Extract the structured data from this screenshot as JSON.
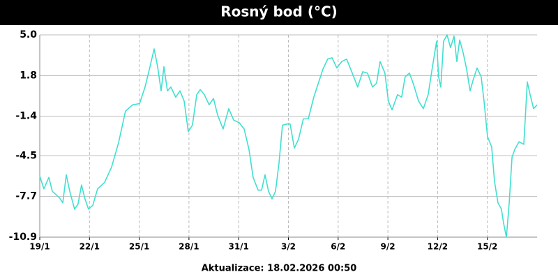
{
  "chart_data": {
    "type": "line",
    "title": "Rosný bod (°C)",
    "footer": "Aktualizace: 18.02.2026 00:50",
    "grid": true,
    "color": "#40e0d0",
    "xlim": [
      0,
      30
    ],
    "xticks": [
      {
        "value": 0,
        "label": "19/1"
      },
      {
        "value": 3,
        "label": "22/1"
      },
      {
        "value": 6,
        "label": "25/1"
      },
      {
        "value": 9,
        "label": "28/1"
      },
      {
        "value": 12,
        "label": "31/1"
      },
      {
        "value": 15,
        "label": "3/2"
      },
      {
        "value": 18,
        "label": "6/2"
      },
      {
        "value": 21,
        "label": "9/2"
      },
      {
        "value": 24,
        "label": "12/2"
      },
      {
        "value": 27,
        "label": "15/2"
      }
    ],
    "ylim": [
      -10.9,
      5
    ],
    "yticks": [
      -10.9,
      -7.7,
      -4.5,
      -1.4,
      1.8,
      {
        "value": 5,
        "label": "5.0"
      }
    ],
    "x": [
      0,
      0.25,
      0.55,
      0.76,
      1.18,
      1.39,
      1.6,
      1.81,
      2.1,
      2.31,
      2.52,
      2.73,
      2.94,
      3.2,
      3.49,
      3.91,
      4.33,
      4.75,
      5.17,
      5.6,
      6.02,
      6.35,
      6.65,
      6.9,
      7.11,
      7.32,
      7.49,
      7.7,
      7.91,
      8.2,
      8.46,
      8.71,
      8.96,
      9.21,
      9.47,
      9.68,
      9.93,
      10.22,
      10.48,
      10.73,
      11.06,
      11.4,
      11.7,
      12.03,
      12.33,
      12.62,
      12.87,
      13.17,
      13.38,
      13.59,
      13.8,
      14.01,
      14.22,
      14.43,
      14.64,
      14.93,
      15.1,
      15.36,
      15.61,
      15.9,
      16.2,
      16.53,
      16.83,
      17.08,
      17.37,
      17.63,
      17.92,
      18.22,
      18.51,
      18.85,
      19.18,
      19.48,
      19.77,
      20.07,
      20.32,
      20.53,
      20.82,
      21.03,
      21.25,
      21.58,
      21.83,
      22.04,
      22.3,
      22.55,
      22.85,
      23.14,
      23.43,
      23.69,
      23.94,
      24.06,
      24.19,
      24.36,
      24.57,
      24.78,
      24.99,
      25.16,
      25.33,
      25.54,
      25.75,
      25.96,
      26.13,
      26.38,
      26.63,
      26.8,
      27.01,
      27.26,
      27.43,
      27.64,
      27.85,
      27.98,
      28.15,
      28.32,
      28.49,
      28.66,
      28.91,
      29.2,
      29.41,
      29.58,
      29.79,
      30
    ],
    "series": [
      {
        "name": "Rosný bod",
        "color": "#40e0d0",
        "values": [
          -6.1,
          -7.1,
          -6.2,
          -7.3,
          -7.8,
          -8.2,
          -6.0,
          -7.3,
          -8.7,
          -8.3,
          -6.8,
          -7.9,
          -8.7,
          -8.4,
          -7.1,
          -6.6,
          -5.4,
          -3.5,
          -1.0,
          -0.5,
          -0.4,
          0.9,
          2.5,
          3.9,
          2.5,
          0.6,
          2.5,
          0.6,
          0.9,
          0.1,
          0.6,
          -0.2,
          -2.6,
          -2.1,
          0.3,
          0.7,
          0.3,
          -0.5,
          0.0,
          -1.3,
          -2.4,
          -0.8,
          -1.7,
          -1.9,
          -2.4,
          -4.0,
          -6.2,
          -7.2,
          -7.2,
          -6.0,
          -7.3,
          -7.9,
          -7.3,
          -5.1,
          -2.1,
          -2.0,
          -2.0,
          -3.9,
          -3.2,
          -1.6,
          -1.6,
          0.1,
          1.3,
          2.3,
          3.1,
          3.2,
          2.4,
          2.9,
          3.1,
          2.0,
          0.9,
          2.1,
          2.0,
          0.9,
          1.2,
          2.9,
          2.0,
          -0.2,
          -0.9,
          0.3,
          0.1,
          1.7,
          2.0,
          1.1,
          -0.2,
          -0.8,
          0.3,
          2.5,
          4.5,
          1.7,
          0.9,
          4.5,
          5.0,
          4.0,
          4.9,
          2.9,
          4.6,
          3.6,
          2.3,
          0.6,
          1.4,
          2.4,
          1.7,
          -0.2,
          -3.0,
          -3.8,
          -6.5,
          -8.2,
          -8.7,
          -9.8,
          -10.9,
          -8.2,
          -4.6,
          -4.0,
          -3.4,
          -3.6,
          1.3,
          0.3,
          -0.8,
          -0.5
        ]
      }
    ]
  }
}
